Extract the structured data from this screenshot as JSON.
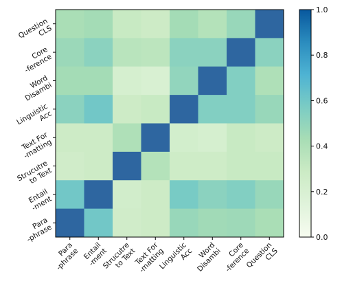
{
  "chart_data": {
    "type": "heatmap",
    "x_labels": [
      [
        "Para",
        "-phrase"
      ],
      [
        "Entail",
        "-ment"
      ],
      [
        "Strucutre",
        "to Text"
      ],
      [
        "Text For",
        "-matting"
      ],
      [
        "Linguistic",
        "Acc"
      ],
      [
        "Word",
        "Disambi"
      ],
      [
        "Core",
        "-ference"
      ],
      [
        "Question",
        "CLS"
      ]
    ],
    "y_labels_top_to_bottom": [
      [
        "Question",
        "CLS"
      ],
      [
        "Core",
        "-ference"
      ],
      [
        "Word",
        "Disambi"
      ],
      [
        "Linguistic",
        "Acc"
      ],
      [
        "Text For",
        "-matting"
      ],
      [
        "Strucutre",
        "to Text"
      ],
      [
        "Entail",
        "-ment"
      ],
      [
        "Para",
        "-phrase"
      ]
    ],
    "matrix_rows_top_to_bottom": [
      [
        0.42,
        0.44,
        0.3,
        0.28,
        0.44,
        0.38,
        0.48,
        1.0
      ],
      [
        0.47,
        0.52,
        0.36,
        0.35,
        0.52,
        0.52,
        1.0,
        0.52
      ],
      [
        0.44,
        0.44,
        0.22,
        0.2,
        0.5,
        1.0,
        0.55,
        0.4
      ],
      [
        0.52,
        0.6,
        0.28,
        0.3,
        1.0,
        0.55,
        0.55,
        0.48
      ],
      [
        0.28,
        0.28,
        0.4,
        1.0,
        0.24,
        0.22,
        0.3,
        0.28
      ],
      [
        0.26,
        0.28,
        1.0,
        0.38,
        0.27,
        0.27,
        0.3,
        0.3
      ],
      [
        0.6,
        1.0,
        0.25,
        0.28,
        0.58,
        0.52,
        0.55,
        0.48
      ],
      [
        1.0,
        0.6,
        0.26,
        0.28,
        0.48,
        0.45,
        0.46,
        0.42
      ]
    ],
    "colorbar": {
      "range": [
        0.0,
        1.0
      ],
      "ticks": [
        "0.0",
        "0.2",
        "0.4",
        "0.6",
        "0.8",
        "1.0"
      ],
      "colormap": [
        "#f7fcf0",
        "#e0f3db",
        "#ccebc5",
        "#a8ddb5",
        "#7bccc4",
        "#4eb3d3",
        "#2b8cbe",
        "#08589e"
      ],
      "vmax_color": "#2e66a0"
    }
  }
}
